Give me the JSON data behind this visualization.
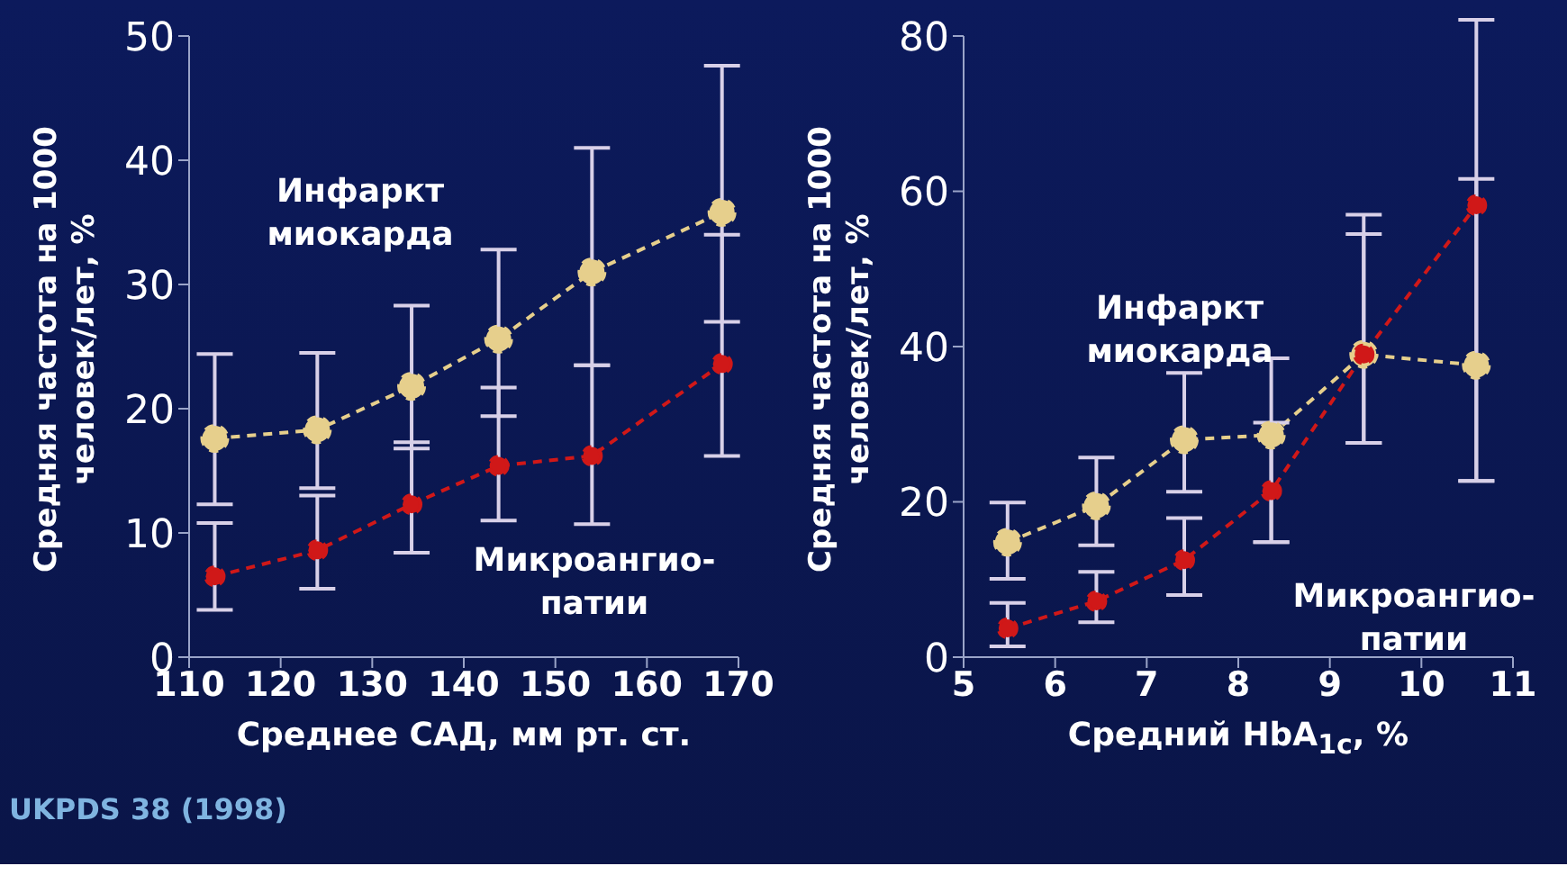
{
  "chart_data": [
    {
      "type": "line",
      "xlabel": "Среднее САД, мм рт. ст.",
      "ylabel": "Средняя частота на 1000 человек/лет, %",
      "xlim": [
        110,
        170
      ],
      "xticks": [
        110,
        120,
        130,
        140,
        150,
        160,
        170
      ],
      "ylim": [
        0,
        50
      ],
      "yticks": [
        0,
        10,
        20,
        30,
        40,
        50
      ],
      "grid": false,
      "legend": false,
      "marker": "circle",
      "line_style": "dashed",
      "annotations": [
        "UKPDS 38 (1998)"
      ],
      "series": [
        {
          "name": "Инфаркт миокарда",
          "color": "#e6cf8c",
          "x": [
            112.8,
            124,
            134.3,
            143.8,
            154,
            168.2
          ],
          "values": [
            17.6,
            18.3,
            21.8,
            25.6,
            31,
            35.8
          ],
          "errors": [
            [
              12.3,
              24.4
            ],
            [
              13.6,
              24.5
            ],
            [
              16.8,
              28.3
            ],
            [
              19.4,
              32.8
            ],
            [
              23.5,
              41
            ],
            [
              27,
              47.6
            ]
          ]
        },
        {
          "name": "Микроангио-патии",
          "color": "#d01818",
          "x": [
            112.8,
            124,
            134.3,
            143.8,
            154,
            168.2
          ],
          "values": [
            6.5,
            8.6,
            12.3,
            15.4,
            16.2,
            23.6
          ],
          "errors": [
            [
              3.8,
              10.8
            ],
            [
              5.5,
              13
            ],
            [
              8.4,
              17.3
            ],
            [
              11,
              21.7
            ],
            [
              10.7,
              23.5
            ],
            [
              16.2,
              34
            ]
          ]
        }
      ]
    },
    {
      "type": "line",
      "xlabel": "Средний HbA$_{1c}$, %",
      "ylabel": "Средняя частота на 1000 человек/лет, %",
      "xlim": [
        5,
        11
      ],
      "xticks": [
        5,
        6,
        7,
        8,
        9,
        10,
        11
      ],
      "ylim": [
        0,
        80
      ],
      "yticks": [
        0,
        20,
        40,
        60,
        80
      ],
      "grid": false,
      "legend": false,
      "marker": "circle",
      "line_style": "dashed",
      "series": [
        {
          "name": "Инфаркт миокарда",
          "color": "#e6cf8c",
          "x": [
            5.48,
            6.45,
            7.41,
            8.36,
            9.37,
            10.6
          ],
          "values": [
            14.8,
            19.5,
            28,
            28.6,
            39,
            37.6
          ],
          "errors": [
            [
              10.1,
              19.9
            ],
            [
              14.4,
              25.7
            ],
            [
              21.3,
              36.6
            ],
            [
              14.8,
              38.5
            ],
            [
              27.6,
              57
            ],
            [
              22.7,
              61.6
            ]
          ]
        },
        {
          "name": "Микроангио-патии",
          "color": "#d01818",
          "x": [
            5.48,
            6.45,
            7.41,
            8.36,
            9.37,
            10.6
          ],
          "values": [
            3.7,
            7.2,
            12.5,
            21.4,
            39,
            58.2
          ],
          "errors": [
            [
              1.4,
              7
            ],
            [
              4.5,
              11
            ],
            [
              8,
              17.9
            ],
            [
              14.8,
              30.2
            ],
            [
              27.6,
              54.5
            ],
            [
              22.7,
              82.1
            ]
          ]
        }
      ]
    }
  ]
}
